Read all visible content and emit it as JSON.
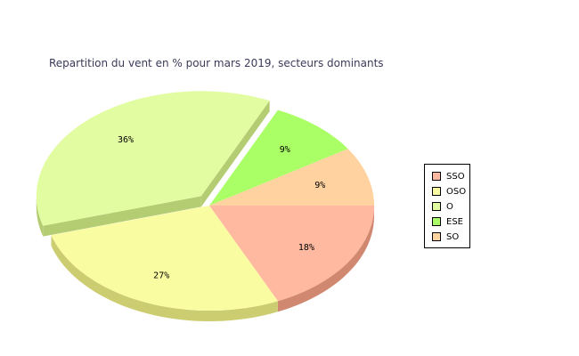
{
  "chart_data": {
    "type": "pie",
    "title": "Repartition du vent en % pour mars 2019, secteurs dominants",
    "slices": [
      {
        "name": "SSO",
        "value": 18,
        "label": "18%",
        "color": "#FFB9A0",
        "side": "#D08870",
        "exploded": false
      },
      {
        "name": "OSO",
        "value": 27,
        "label": "27%",
        "color": "#FAFCA2",
        "side": "#CCCC70",
        "exploded": false
      },
      {
        "name": "O",
        "value": 36,
        "label": "36%",
        "color": "#E2FCA2",
        "side": "#B4CC72",
        "exploded": true
      },
      {
        "name": "ESE",
        "value": 9,
        "label": "9%",
        "color": "#AAFF66",
        "side": "#88CC50",
        "exploded": false
      },
      {
        "name": "SO",
        "value": 9,
        "label": "9%",
        "color": "#FFD2A0",
        "side": "#D0A878",
        "exploded": false
      }
    ],
    "legend_position": "right",
    "style": "3d"
  }
}
